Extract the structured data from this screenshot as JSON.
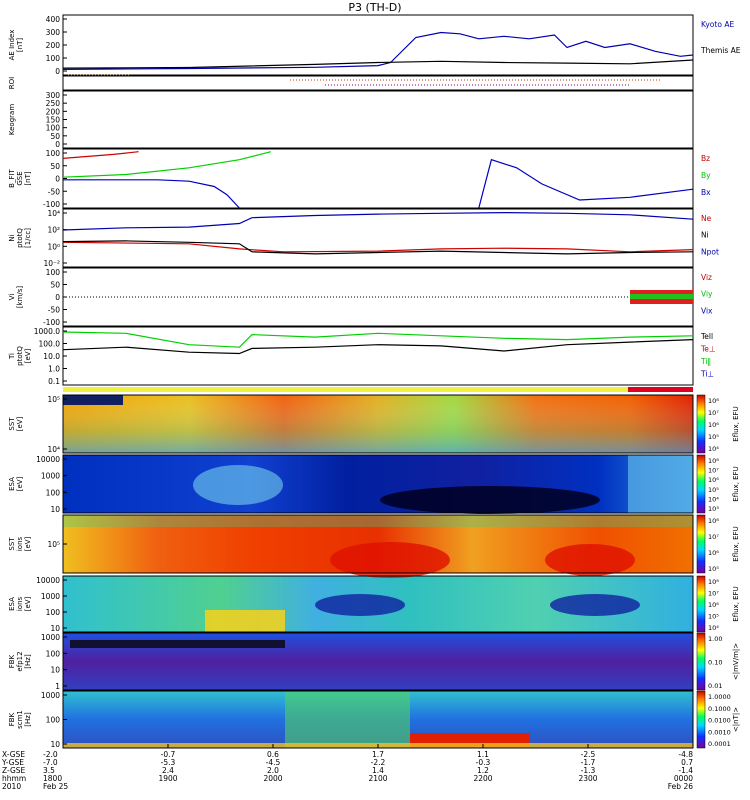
{
  "title": "P3 (TH-D)",
  "chart_data": {
    "type": "line",
    "title": "P3 (TH-D)",
    "time_axis": {
      "row_labels": [
        "X-GSE",
        "Y-GSE",
        "Z-GSE",
        "hhmm",
        "2010"
      ],
      "ticks": [
        {
          "x": "-2.0",
          "y": "-7.0",
          "z": "3.5",
          "hhmm": "1800",
          "date": "Feb 25"
        },
        {
          "x": "-0.7",
          "y": "-5.3",
          "z": "2.4",
          "hhmm": "1900",
          "date": ""
        },
        {
          "x": "0.6",
          "y": "-4.5",
          "z": "2.0",
          "hhmm": "2000",
          "date": ""
        },
        {
          "x": "1.7",
          "y": "-2.2",
          "z": "1.4",
          "hhmm": "2100",
          "date": ""
        },
        {
          "x": "1.1",
          "y": "-0.3",
          "z": "1.2",
          "hhmm": "2200",
          "date": ""
        },
        {
          "x": "-2.5",
          "y": "-1.7",
          "z": "-1.3",
          "hhmm": "2300",
          "date": ""
        },
        {
          "x": "-4.8",
          "y": "0.7",
          "z": "-1.4",
          "hhmm": "0000",
          "date": "Feb 26"
        }
      ]
    },
    "panels": [
      {
        "id": "ae",
        "ylabel": [
          "AE Index",
          "[nT]"
        ],
        "ylim": [
          -40,
          440
        ],
        "ticks": [
          "400",
          "300",
          "200",
          "100",
          "0"
        ],
        "legend": [
          {
            "name": "Kyoto AE",
            "color": "#0000b0"
          },
          {
            "name": "Themis AE",
            "color": "#000000"
          }
        ],
        "series": [
          {
            "name": "Kyoto AE",
            "color": "#0000b0",
            "t": [
              0,
              0.2,
              0.4,
              0.5,
              0.52,
              0.56,
              0.6,
              0.63,
              0.66,
              0.7,
              0.74,
              0.78,
              0.8,
              0.83,
              0.86,
              0.9,
              0.94,
              0.98,
              1
            ],
            "v": [
              5,
              12,
              22,
              35,
              60,
              260,
              300,
              290,
              250,
              270,
              250,
              280,
              180,
              230,
              180,
              210,
              150,
              110,
              120
            ]
          },
          {
            "name": "Themis AE",
            "color": "#000000",
            "t": [
              0,
              0.2,
              0.4,
              0.5,
              0.6,
              0.7,
              0.8,
              0.9,
              1
            ],
            "v": [
              15,
              20,
              45,
              60,
              70,
              60,
              55,
              50,
              80
            ]
          }
        ]
      },
      {
        "id": "roi",
        "ylabel": [
          "ROI"
        ],
        "ticks": []
      },
      {
        "id": "kxgram",
        "ylabel": [
          "Keogram"
        ],
        "ylim": [
          0,
          300
        ],
        "ticks": [
          "300",
          "250",
          "200",
          "150",
          "100",
          "50",
          "0"
        ]
      },
      {
        "id": "bfit",
        "ylabel": [
          "B_FIT",
          "GSE",
          "[nT]"
        ],
        "ylim": [
          -110,
          110
        ],
        "ticks": [
          "100",
          "50",
          "0",
          "-50",
          "-100"
        ],
        "legend": [
          {
            "name": "Bz",
            "color": "#c00000"
          },
          {
            "name": "By",
            "color": "#00c000"
          },
          {
            "name": "Bx",
            "color": "#0000b0"
          }
        ],
        "series": [
          {
            "name": "Bz",
            "color": "#d00000",
            "t": [
              0,
              0.08,
              0.12
            ],
            "v": [
              75,
              90,
              100
            ]
          },
          {
            "name": "By",
            "color": "#00d000",
            "t": [
              0,
              0.1,
              0.2,
              0.28,
              0.33
            ],
            "v": [
              5,
              15,
              40,
              70,
              100
            ]
          },
          {
            "name": "Bx",
            "color": "#0000c0",
            "t": [
              0,
              0.15,
              0.2,
              0.24,
              0.26,
              0.28
            ],
            "v": [
              -5,
              -5,
              -10,
              -30,
              -60,
              -110
            ]
          },
          {
            "name": "Bx2",
            "color": "#0000c0",
            "t": [
              0.66,
              0.68,
              0.72,
              0.76,
              0.82,
              0.9,
              1
            ],
            "v": [
              -110,
              70,
              40,
              -20,
              -80,
              -70,
              -40
            ]
          }
        ]
      },
      {
        "id": "ni",
        "ylabel": [
          "Ni",
          "ptotQ",
          "[1/cc]"
        ],
        "ylim": [
          -3,
          5
        ],
        "ticks": [
          "10⁴",
          "10²",
          "10⁰",
          "10⁻²"
        ],
        "legend": [
          {
            "name": "Ne",
            "color": "#c00000"
          },
          {
            "name": "Ni",
            "color": "#000000"
          },
          {
            "name": "Npot",
            "color": "#0000b0"
          }
        ],
        "series": [
          {
            "name": "Ne",
            "color": "#d00000",
            "t": [
              0,
              0.2,
              0.28,
              0.35,
              0.5,
              0.6,
              0.7,
              0.8,
              0.9,
              1
            ],
            "v": [
              0.4,
              0.2,
              -0.5,
              -0.9,
              -0.8,
              -0.5,
              -0.4,
              -0.5,
              -0.9,
              -0.6
            ]
          },
          {
            "name": "Ni",
            "color": "#000000",
            "t": [
              0,
              0.1,
              0.2,
              0.28,
              0.3,
              0.4,
              0.5,
              0.6,
              0.7,
              0.8,
              0.9,
              1
            ],
            "v": [
              0.5,
              0.6,
              0.4,
              0.2,
              -0.9,
              -1.2,
              -1.0,
              -0.8,
              -1.0,
              -1.2,
              -1.0,
              -0.9
            ]
          },
          {
            "name": "Npot",
            "color": "#0000b0",
            "t": [
              0,
              0.1,
              0.2,
              0.28,
              0.3,
              0.4,
              0.5,
              0.6,
              0.7,
              0.8,
              0.9,
              1
            ],
            "v": [
              2.1,
              2.4,
              2.5,
              3.0,
              3.8,
              4.1,
              4.3,
              4.4,
              4.5,
              4.4,
              4.2,
              3.6
            ]
          }
        ]
      },
      {
        "id": "vi",
        "ylabel": [
          "Vi",
          "[km/s]"
        ],
        "ylim": [
          -125,
          125
        ],
        "ticks": [
          "100",
          "50",
          "0",
          "-50",
          "-100"
        ],
        "legend": [
          {
            "name": "Viz",
            "color": "#c00000"
          },
          {
            "name": "Viy",
            "color": "#00c000"
          },
          {
            "name": "Vix",
            "color": "#0000b0"
          }
        ]
      },
      {
        "id": "ti",
        "ylabel": [
          "Ti",
          "ptotQ",
          "[eV]"
        ],
        "ylim": [
          -1.2,
          3.4
        ],
        "ticks": [
          "1000.0",
          "100.0",
          "10.0",
          "1.0",
          "0.1"
        ],
        "legend": [
          {
            "name": "Tell",
            "color": "#000000"
          },
          {
            "name": "Te⊥",
            "color": "#c00000"
          },
          {
            "name": "Ti‖",
            "color": "#00c000"
          },
          {
            "name": "Ti⊥",
            "color": "#0000b0"
          }
        ],
        "series": [
          {
            "name": "Tell",
            "color": "#000000",
            "t": [
              0,
              0.1,
              0.2,
              0.28,
              0.3,
              0.4,
              0.5,
              0.6,
              0.7,
              0.8,
              0.9,
              1
            ],
            "v": [
              1.6,
              1.8,
              1.4,
              1.3,
              1.7,
              1.8,
              2.0,
              1.9,
              1.5,
              2.0,
              2.2,
              2.4
            ]
          },
          {
            "name": "Ti‖",
            "color": "#00d000",
            "t": [
              0,
              0.1,
              0.2,
              0.28,
              0.3,
              0.4,
              0.5,
              0.6,
              0.7,
              0.8,
              0.9,
              1
            ],
            "v": [
              3.0,
              2.9,
              2.0,
              1.8,
              2.8,
              2.6,
              2.9,
              2.7,
              2.5,
              2.4,
              2.6,
              2.7
            ]
          }
        ]
      },
      {
        "id": "sst1",
        "ylabel": [
          "SST",
          "[eV]"
        ],
        "spectrogram": true,
        "ticks": [
          "10⁵",
          "10⁴"
        ]
      },
      {
        "id": "esa1",
        "ylabel": [
          "ESA",
          "[eV]"
        ],
        "spectrogram": true,
        "ticks": [
          "10000",
          "1000",
          "100",
          "10"
        ]
      },
      {
        "id": "sst2",
        "ylabel": [
          "SST",
          "ions",
          "[eV]"
        ],
        "spectrogram": true,
        "ticks": [
          "10⁵"
        ]
      },
      {
        "id": "esa2",
        "ylabel": [
          "ESA",
          "ions",
          "[eV]"
        ],
        "spectrogram": true,
        "ticks": [
          "10000",
          "1000",
          "100",
          "10"
        ]
      },
      {
        "id": "fbk1",
        "ylabel": [
          "FBK",
          "efp12",
          "[Hz]"
        ],
        "spectrogram": true,
        "ticks": [
          "1000",
          "100",
          "10",
          "1"
        ]
      },
      {
        "id": "fbk2",
        "ylabel": [
          "FBK",
          "scm1",
          "[Hz]"
        ],
        "spectrogram": true,
        "ticks": [
          "1000",
          "100",
          "10"
        ]
      }
    ],
    "colorbars": [
      {
        "label": "Eflux, EFU",
        "ticks": [
          "10⁸",
          "10⁷",
          "10⁶",
          "10⁵",
          "10⁴"
        ]
      },
      {
        "label": "Eflux, EFU",
        "ticks": [
          "10⁸",
          "10⁷",
          "10⁶",
          "10⁵",
          "10⁴",
          "10³"
        ]
      },
      {
        "label": "Eflux, EFU",
        "ticks": [
          "10⁸",
          "10⁷",
          "10⁶",
          "10⁵"
        ]
      },
      {
        "label": "Eflux, EFU",
        "ticks": [
          "10⁸",
          "10⁷",
          "10⁶",
          "10⁵",
          "10⁴"
        ]
      },
      {
        "label": "<|mV/m|>",
        "ticks": [
          "1.00",
          "0.10",
          "0.01"
        ]
      },
      {
        "label": "<|nT|>",
        "ticks": [
          "1.0000",
          "0.1000",
          "0.0100",
          "0.0010",
          "0.0001"
        ]
      }
    ]
  }
}
